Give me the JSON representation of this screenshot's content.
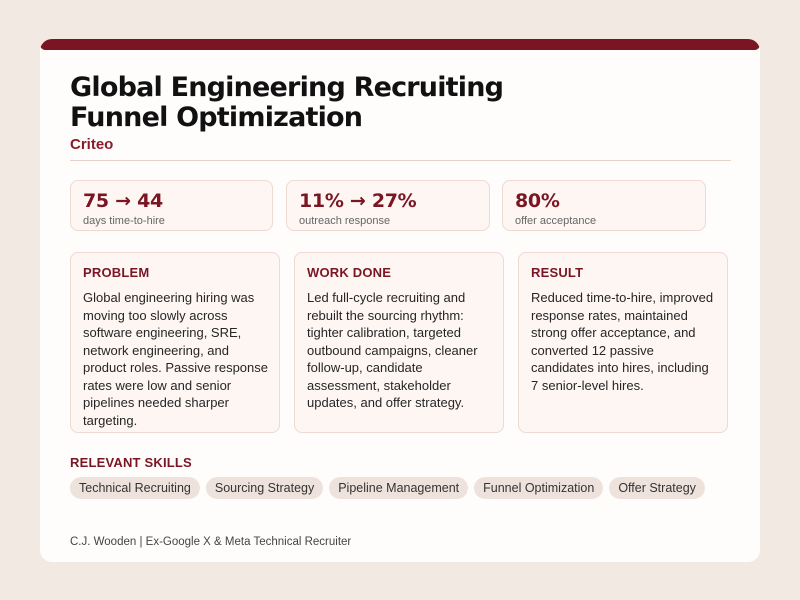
{
  "header": {
    "title_line1": "Global Engineering Recruiting",
    "title_line2": "Funnel Optimization",
    "company": "Criteo",
    "accent_color": "#7a1624"
  },
  "metrics": [
    {
      "value": "75 → 44",
      "label": "days time-to-hire"
    },
    {
      "value": "11% → 27%",
      "label": "outreach response"
    },
    {
      "value": "80%",
      "label": "offer acceptance"
    }
  ],
  "sections": [
    {
      "title": "PROBLEM",
      "body": "Global engineering hiring was moving too slowly across software engineering, SRE, network engineering, and product roles. Passive response rates were low and senior pipelines needed sharper targeting."
    },
    {
      "title": "WORK DONE",
      "body": "Led full-cycle recruiting and rebuilt the sourcing rhythm: tighter calibration, targeted outbound campaigns, cleaner follow-up, candidate assessment, stakeholder updates, and offer strategy."
    },
    {
      "title": "RESULT",
      "body": "Reduced time-to-hire, improved response rates, maintained strong offer acceptance, and converted 12 passive candidates into hires, including 7 senior-level hires."
    }
  ],
  "skills": {
    "title": "RELEVANT SKILLS",
    "items": [
      "Technical Recruiting",
      "Sourcing Strategy",
      "Pipeline Management",
      "Funnel Optimization",
      "Offer Strategy"
    ]
  },
  "footer": {
    "text": "C.J. Wooden | Ex-Google X & Meta Technical Recruiter"
  }
}
